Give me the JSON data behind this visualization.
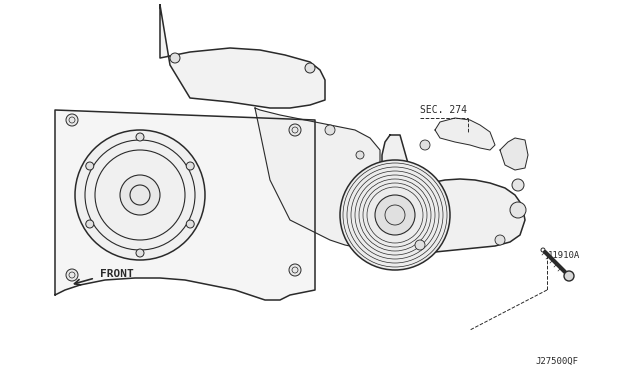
{
  "bg_color": "#ffffff",
  "line_color": "#2a2a2a",
  "label_sec274": "SEC. 274",
  "label_11910A": "11910A",
  "label_front": "FRONT",
  "label_diagram_id": "J27500QF",
  "fig_width": 6.4,
  "fig_height": 3.72,
  "dpi": 100
}
